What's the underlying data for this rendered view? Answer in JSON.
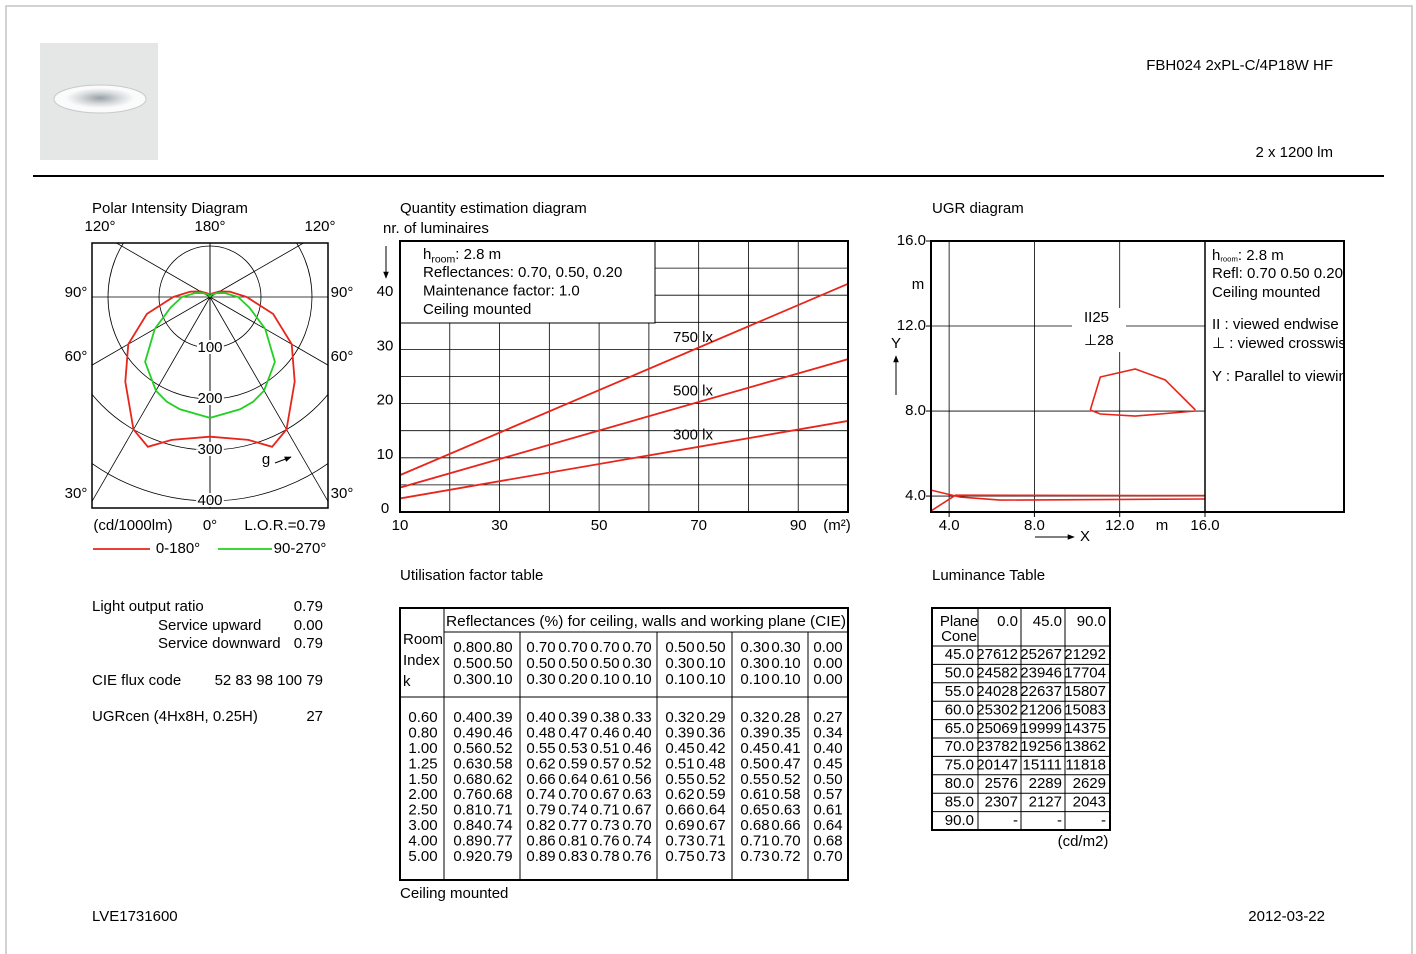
{
  "header": {
    "title": "FBH024 2xPL-C/4P18W HF",
    "flux": "2 x 1200 lm"
  },
  "polar": {
    "title": "Polar Intensity Diagram",
    "angle_labels": [
      "120°",
      "180°",
      "120°",
      "90°",
      "90°",
      "60°",
      "60°",
      "30°",
      "30°"
    ],
    "rlim": [
      0,
      400
    ],
    "rticks": [
      100,
      200,
      300,
      400
    ],
    "unit": "(cd/1000lm)",
    "zero_label": "0°",
    "lor": "L.O.R.=0.79",
    "direction_label": "g",
    "series": [
      {
        "name": "0-180°",
        "color": "#e8251b",
        "angles": [
          0,
          15,
          22.5,
          30,
          45,
          60,
          75,
          90,
          105,
          120,
          150,
          180
        ],
        "values": [
          274,
          290,
          318,
          300,
          235,
          185,
          128,
          72,
          40,
          22,
          8,
          0
        ]
      },
      {
        "name": "90-270°",
        "color": "#22d022",
        "angles": [
          0,
          15,
          22.5,
          30,
          45,
          60,
          75,
          90,
          105,
          120,
          150,
          180
        ],
        "values": [
          237,
          228,
          222,
          212,
          180,
          125,
          80,
          55,
          30,
          15,
          5,
          0
        ]
      }
    ]
  },
  "quantity": {
    "title": "Quantity estimation diagram",
    "y_label": "nr. of luminaires",
    "x_unit": "(m²)",
    "xlim": [
      10,
      100
    ],
    "ylim": [
      0,
      50
    ],
    "xticks": [
      10,
      30,
      50,
      70,
      90
    ],
    "yticks": [
      0,
      10,
      20,
      30,
      40
    ],
    "xgrid": [
      20,
      30,
      40,
      50,
      60,
      70,
      80,
      90
    ],
    "ygrid": [
      5,
      10,
      15,
      20,
      25,
      30,
      35,
      40,
      45
    ],
    "notes": {
      "h_room": {
        "symbol": "h",
        "subscript": "room",
        "text": ": 2.8 m"
      },
      "lines": [
        "Reflectances: 0.70, 0.50, 0.20",
        "Maintenance factor: 1.0",
        "Ceiling mounted"
      ]
    },
    "series": [
      {
        "name": "750 lx",
        "color": "#e8251b",
        "x": [
          10,
          100
        ],
        "values": [
          6.8,
          42.1
        ]
      },
      {
        "name": "500 lx",
        "color": "#e8251b",
        "x": [
          10,
          100
        ],
        "values": [
          4.5,
          28.2
        ]
      },
      {
        "name": "300 lx",
        "color": "#e8251b",
        "x": [
          10,
          100
        ],
        "values": [
          2.5,
          16.8
        ]
      }
    ]
  },
  "ugr": {
    "title": "UGR diagram",
    "xlim": [
      3.15,
      16
    ],
    "ylim": [
      3.25,
      16
    ],
    "xticks": [
      {
        "value": 4,
        "label": "4.0"
      },
      {
        "value": 8,
        "label": "8.0"
      },
      {
        "value": 12,
        "label": "12.0"
      },
      {
        "value": 16,
        "label": "16.0"
      }
    ],
    "yticks": [
      {
        "value": 4,
        "label": "4.0"
      },
      {
        "value": 8,
        "label": "8.0"
      },
      {
        "value": 12,
        "label": "12.0"
      },
      {
        "value": 16,
        "label": "16.0"
      }
    ],
    "x_label": "X",
    "y_label": "Y",
    "x_unit": "m",
    "y_unit": "m",
    "contour_labels": [
      "II25",
      "⊥28"
    ],
    "notes": {
      "h_room": {
        "symbol": "h",
        "subscript": "room",
        "text": ": 2.8 m"
      },
      "lines": [
        "Refl: 0.70 0.50 0.20",
        "Ceiling mounted"
      ],
      "legend": [
        "II : viewed endwise",
        "⊥ : viewed crosswise",
        "Y  : Parallel to viewing dir."
      ]
    },
    "series": [
      {
        "color": "#e8251b",
        "x": [
          10.62,
          11.09,
          12.73,
          14.14,
          15.55
        ],
        "values": [
          8.05,
          9.6,
          9.98,
          9.46,
          8.05
        ]
      },
      {
        "color": "#e8251b",
        "x": [
          10.62,
          11.09,
          12.73,
          15.55
        ],
        "values": [
          8.05,
          7.86,
          7.76,
          8.0
        ]
      },
      {
        "color": "#e8251b",
        "x": [
          3.15,
          4.52,
          6.39,
          16
        ],
        "values": [
          4.28,
          3.95,
          3.81,
          3.86
        ]
      },
      {
        "color": "#e8251b",
        "x": [
          3.15,
          4.3,
          16
        ],
        "values": [
          3.3,
          4.04,
          4.02
        ]
      }
    ]
  },
  "info": {
    "rows": [
      {
        "label": "Light output ratio",
        "value": "0.79"
      },
      {
        "label": "Service upward",
        "value": "0.00"
      },
      {
        "label": "Service downward",
        "value": "0.79"
      },
      {
        "label": "CIE flux code",
        "value": "52 83 98 100 79"
      },
      {
        "label": "UGRcen (4Hx8H, 0.25H)",
        "value": "27"
      }
    ]
  },
  "utilisation": {
    "title": "Utilisation factor table",
    "header": "Reflectances (%) for ceiling, walls and working plane (CIE)",
    "index_label": [
      "Room",
      "Index",
      "k"
    ],
    "reflectances": [
      [
        "0.80",
        "0.80",
        "0.70",
        "0.70",
        "0.70",
        "0.70",
        "0.50",
        "0.50",
        "0.30",
        "0.30",
        "0.00"
      ],
      [
        "0.50",
        "0.50",
        "0.50",
        "0.50",
        "0.50",
        "0.30",
        "0.30",
        "0.10",
        "0.30",
        "0.10",
        "0.00"
      ],
      [
        "0.30",
        "0.10",
        "0.30",
        "0.20",
        "0.10",
        "0.10",
        "0.10",
        "0.10",
        "0.10",
        "0.10",
        "0.00"
      ]
    ],
    "rows": [
      {
        "k": "0.60",
        "values": [
          "0.40",
          "0.39",
          "0.40",
          "0.39",
          "0.38",
          "0.33",
          "0.32",
          "0.29",
          "0.32",
          "0.28",
          "0.27"
        ]
      },
      {
        "k": "0.80",
        "values": [
          "0.49",
          "0.46",
          "0.48",
          "0.47",
          "0.46",
          "0.40",
          "0.39",
          "0.36",
          "0.39",
          "0.35",
          "0.34"
        ]
      },
      {
        "k": "1.00",
        "values": [
          "0.56",
          "0.52",
          "0.55",
          "0.53",
          "0.51",
          "0.46",
          "0.45",
          "0.42",
          "0.45",
          "0.41",
          "0.40"
        ]
      },
      {
        "k": "1.25",
        "values": [
          "0.63",
          "0.58",
          "0.62",
          "0.59",
          "0.57",
          "0.52",
          "0.51",
          "0.48",
          "0.50",
          "0.47",
          "0.45"
        ]
      },
      {
        "k": "1.50",
        "values": [
          "0.68",
          "0.62",
          "0.66",
          "0.64",
          "0.61",
          "0.56",
          "0.55",
          "0.52",
          "0.55",
          "0.52",
          "0.50"
        ]
      },
      {
        "k": "2.00",
        "values": [
          "0.76",
          "0.68",
          "0.74",
          "0.70",
          "0.67",
          "0.63",
          "0.62",
          "0.59",
          "0.61",
          "0.58",
          "0.57"
        ]
      },
      {
        "k": "2.50",
        "values": [
          "0.81",
          "0.71",
          "0.79",
          "0.74",
          "0.71",
          "0.67",
          "0.66",
          "0.64",
          "0.65",
          "0.63",
          "0.61"
        ]
      },
      {
        "k": "3.00",
        "values": [
          "0.84",
          "0.74",
          "0.82",
          "0.77",
          "0.73",
          "0.70",
          "0.69",
          "0.67",
          "0.68",
          "0.66",
          "0.64"
        ]
      },
      {
        "k": "4.00",
        "values": [
          "0.89",
          "0.77",
          "0.86",
          "0.81",
          "0.76",
          "0.74",
          "0.73",
          "0.71",
          "0.71",
          "0.70",
          "0.68"
        ]
      },
      {
        "k": "5.00",
        "values": [
          "0.92",
          "0.79",
          "0.89",
          "0.83",
          "0.78",
          "0.76",
          "0.75",
          "0.73",
          "0.73",
          "0.72",
          "0.70"
        ]
      }
    ],
    "note": "Ceiling mounted"
  },
  "luminance": {
    "title": "Luminance Table",
    "corner": [
      "Plane",
      "Cone"
    ],
    "columns": [
      "0.0",
      "45.0",
      "90.0"
    ],
    "rows": [
      {
        "cone": "45.0",
        "values": [
          "27612",
          "25267",
          "21292"
        ]
      },
      {
        "cone": "50.0",
        "values": [
          "24582",
          "23946",
          "17704"
        ]
      },
      {
        "cone": "55.0",
        "values": [
          "24028",
          "22637",
          "15807"
        ]
      },
      {
        "cone": "60.0",
        "values": [
          "25302",
          "21206",
          "15083"
        ]
      },
      {
        "cone": "65.0",
        "values": [
          "25069",
          "19999",
          "14375"
        ]
      },
      {
        "cone": "70.0",
        "values": [
          "23782",
          "19256",
          "13862"
        ]
      },
      {
        "cone": "75.0",
        "values": [
          "20147",
          "15111",
          "11818"
        ]
      },
      {
        "cone": "80.0",
        "values": [
          "2576",
          "2289",
          "2629"
        ]
      },
      {
        "cone": "85.0",
        "values": [
          "2307",
          "2127",
          "2043"
        ]
      },
      {
        "cone": "90.0",
        "values": [
          "-",
          "-",
          "-"
        ]
      }
    ],
    "unit": "(cd/m2)"
  },
  "footer": {
    "code": "LVE1731600",
    "date": "2012-03-22"
  }
}
